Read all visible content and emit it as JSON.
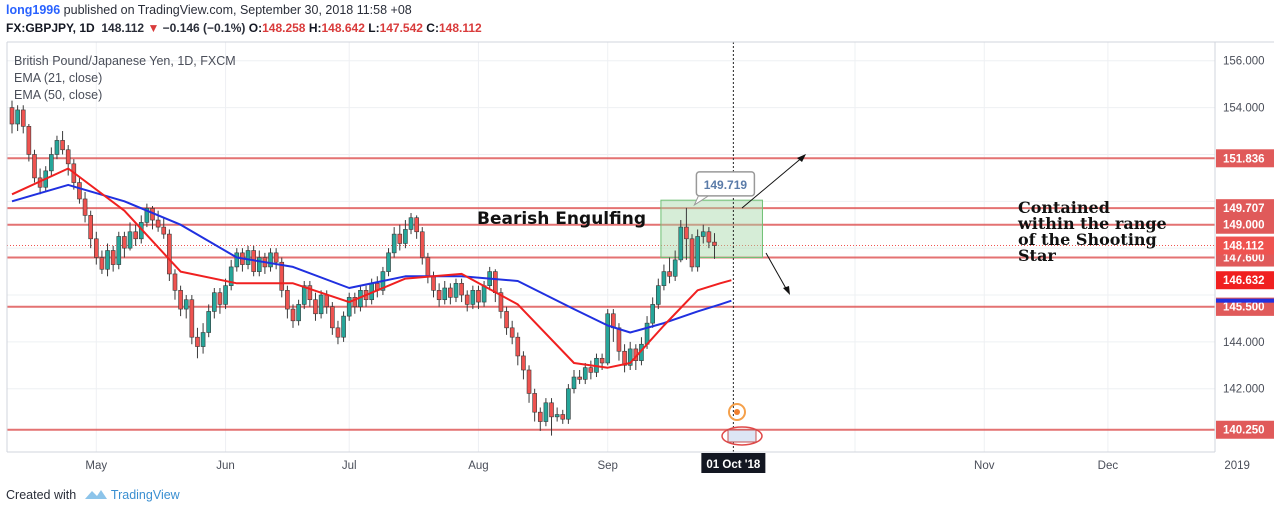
{
  "header": {
    "user": "long1996",
    "published": "published on TradingView.com, September 30, 2018 11:58 +08",
    "symbol": "FX:GBPJPY, 1D",
    "last": "148.112",
    "change": "−0.146 (−0.1%)",
    "o_label": "O:",
    "o_value": "148.258",
    "h_label": "H:",
    "h_value": "148.642",
    "l_label": "L:",
    "l_value": "147.542",
    "c_label": "C:",
    "c_value": "148.112"
  },
  "legend": {
    "instrument": "British Pound/Japanese Yen, 1D, FXCM",
    "ema21": "EMA (21, close)",
    "ema50": "EMA (50, close)"
  },
  "footer": {
    "created_with": "Created with",
    "brand": "TradingView"
  },
  "colors": {
    "up": "#26a69a",
    "down": "#ef5350",
    "ema21": "#f02020",
    "ema50": "#2030e0",
    "level": "#e05a5a"
  },
  "chart_data": {
    "type": "candlestick",
    "symbol": "GBPJPY",
    "timeframe": "1D",
    "ylim": [
      139.3,
      156.8
    ],
    "y_ticks": [
      142.0,
      144.0,
      146.0,
      148.0,
      150.0,
      152.0,
      154.0,
      156.0
    ],
    "y_tick_labels": [
      "142.000",
      "144.000",
      "",
      "",
      "",
      "",
      "154.000",
      "156.000"
    ],
    "x_labels": [
      {
        "label": "May",
        "bar": 15
      },
      {
        "label": "Jun",
        "bar": 38
      },
      {
        "label": "Jul",
        "bar": 60
      },
      {
        "label": "Aug",
        "bar": 83
      },
      {
        "label": "Sep",
        "bar": 106
      },
      {
        "label": "Oct",
        "bar": 150
      },
      {
        "label": "Nov",
        "bar": 173
      },
      {
        "label": "Dec",
        "bar": 195
      },
      {
        "label": "2019",
        "bar": 218
      }
    ],
    "current_date_label": "01 Oct '18",
    "current_bar": 128,
    "levels": [
      151.836,
      149.707,
      149.0,
      147.6,
      145.5,
      140.25
    ],
    "level_labels": [
      "151.836",
      "149.707",
      "149.000",
      "147.600",
      "145.500",
      "140.250"
    ],
    "price_tags": [
      {
        "label": "148.112",
        "value": 148.112
      },
      {
        "label": "146.632",
        "value": 146.632
      },
      {
        "label": "145.500",
        "value": 145.5
      }
    ],
    "current_price": 148.112,
    "ema21_last": 146.632,
    "ema50_last": 145.76,
    "peak_callout": {
      "label": "149.719",
      "bar": 120,
      "value": 149.719
    },
    "annotations": [
      {
        "text": "Bearish Engulfing"
      },
      {
        "text": [
          "Contained",
          "within the range",
          "of the Shooting",
          "Star"
        ]
      }
    ],
    "box": {
      "bar_start": 116,
      "bar_end": 133,
      "low": 147.6,
      "high": 149.707
    },
    "candles": [
      [
        154.0,
        153.3,
        154.3,
        152.9
      ],
      [
        153.3,
        153.9,
        154.1,
        153.0
      ],
      [
        153.9,
        153.2,
        154.1,
        152.9
      ],
      [
        153.2,
        152.0,
        153.3,
        151.7
      ],
      [
        152.0,
        151.0,
        152.2,
        150.8
      ],
      [
        151.0,
        150.6,
        151.4,
        150.3
      ],
      [
        150.6,
        151.3,
        151.5,
        150.4
      ],
      [
        151.3,
        152.0,
        152.3,
        151.1
      ],
      [
        152.0,
        152.6,
        152.8,
        151.8
      ],
      [
        152.6,
        152.2,
        153.0,
        152.0
      ],
      [
        152.2,
        151.6,
        152.4,
        151.1
      ],
      [
        151.6,
        150.8,
        151.8,
        150.5
      ],
      [
        150.8,
        150.1,
        151.0,
        149.9
      ],
      [
        150.1,
        149.4,
        150.4,
        149.1
      ],
      [
        149.4,
        148.4,
        149.6,
        148.0
      ],
      [
        148.4,
        147.6,
        148.7,
        147.3
      ],
      [
        147.6,
        147.1,
        147.9,
        146.9
      ],
      [
        147.1,
        147.9,
        148.2,
        146.8
      ],
      [
        147.9,
        147.3,
        148.1,
        147.0
      ],
      [
        147.3,
        148.5,
        148.7,
        147.1
      ],
      [
        148.5,
        148.0,
        148.7,
        147.6
      ],
      [
        148.0,
        148.7,
        149.1,
        147.9
      ],
      [
        148.7,
        148.4,
        149.0,
        148.1
      ],
      [
        148.4,
        149.1,
        149.4,
        148.2
      ],
      [
        149.1,
        149.7,
        149.9,
        148.9
      ],
      [
        149.7,
        149.2,
        149.8,
        148.8
      ],
      [
        149.2,
        148.9,
        149.6,
        148.7
      ],
      [
        148.9,
        148.6,
        149.3,
        148.4
      ],
      [
        148.6,
        146.9,
        148.8,
        146.6
      ],
      [
        146.9,
        146.2,
        147.1,
        145.8
      ],
      [
        146.2,
        145.4,
        146.4,
        145.1
      ],
      [
        145.4,
        145.8,
        146.0,
        145.0
      ],
      [
        145.8,
        144.2,
        146.0,
        143.9
      ],
      [
        144.2,
        143.8,
        144.6,
        143.3
      ],
      [
        143.8,
        144.4,
        144.8,
        143.5
      ],
      [
        144.4,
        145.3,
        145.6,
        144.2
      ],
      [
        145.3,
        146.1,
        146.3,
        145.0
      ],
      [
        146.1,
        145.6,
        146.3,
        145.2
      ],
      [
        145.6,
        146.4,
        146.7,
        145.4
      ],
      [
        146.4,
        147.2,
        147.5,
        146.2
      ],
      [
        147.2,
        147.8,
        148.0,
        147.0
      ],
      [
        147.8,
        147.3,
        148.0,
        147.0
      ],
      [
        147.3,
        147.9,
        148.1,
        147.1
      ],
      [
        147.9,
        147.0,
        148.1,
        146.8
      ],
      [
        147.0,
        147.6,
        147.9,
        146.8
      ],
      [
        147.6,
        147.2,
        147.8,
        146.9
      ],
      [
        147.2,
        147.8,
        148.0,
        147.0
      ],
      [
        147.8,
        147.4,
        148.0,
        147.1
      ],
      [
        147.4,
        146.2,
        147.6,
        145.9
      ],
      [
        146.2,
        145.4,
        146.4,
        145.0
      ],
      [
        145.4,
        144.9,
        145.6,
        144.6
      ],
      [
        144.9,
        145.6,
        145.8,
        144.7
      ],
      [
        145.6,
        146.4,
        146.6,
        145.4
      ],
      [
        146.4,
        145.8,
        146.6,
        145.5
      ],
      [
        145.8,
        145.2,
        146.1,
        144.9
      ],
      [
        145.2,
        146.0,
        146.2,
        145.0
      ],
      [
        146.0,
        145.5,
        146.2,
        145.2
      ],
      [
        145.5,
        144.6,
        145.7,
        144.3
      ],
      [
        144.6,
        144.2,
        144.9,
        143.9
      ],
      [
        144.2,
        145.1,
        145.3,
        144.0
      ],
      [
        145.1,
        145.9,
        146.1,
        144.9
      ],
      [
        145.9,
        145.5,
        146.1,
        145.2
      ],
      [
        145.5,
        146.2,
        146.4,
        145.3
      ],
      [
        146.2,
        145.8,
        146.4,
        145.5
      ],
      [
        145.8,
        146.5,
        146.7,
        145.6
      ],
      [
        146.5,
        146.2,
        146.8,
        145.9
      ],
      [
        146.2,
        147.0,
        147.2,
        146.0
      ],
      [
        147.0,
        147.8,
        148.0,
        146.8
      ],
      [
        147.8,
        148.6,
        148.9,
        147.6
      ],
      [
        148.6,
        148.2,
        149.0,
        147.9
      ],
      [
        148.2,
        148.8,
        149.2,
        148.0
      ],
      [
        148.8,
        149.3,
        149.5,
        148.6
      ],
      [
        149.3,
        148.7,
        149.4,
        148.4
      ],
      [
        148.7,
        147.6,
        148.9,
        147.3
      ],
      [
        147.6,
        146.8,
        147.8,
        146.5
      ],
      [
        146.8,
        146.2,
        147.0,
        145.9
      ],
      [
        146.2,
        145.8,
        146.5,
        145.5
      ],
      [
        145.8,
        146.3,
        146.6,
        145.6
      ],
      [
        146.3,
        145.9,
        146.5,
        145.6
      ],
      [
        145.9,
        146.5,
        146.7,
        145.7
      ],
      [
        146.5,
        146.0,
        146.7,
        145.7
      ],
      [
        146.0,
        145.6,
        146.2,
        145.3
      ],
      [
        145.6,
        146.2,
        146.4,
        145.4
      ],
      [
        146.2,
        145.7,
        146.4,
        145.4
      ],
      [
        145.7,
        146.4,
        146.6,
        145.5
      ],
      [
        146.4,
        147.0,
        147.2,
        146.2
      ],
      [
        147.0,
        146.1,
        147.1,
        145.7
      ],
      [
        146.1,
        145.3,
        146.3,
        145.0
      ],
      [
        145.3,
        144.6,
        145.5,
        144.3
      ],
      [
        144.6,
        144.2,
        144.9,
        143.9
      ],
      [
        144.2,
        143.4,
        144.4,
        143.0
      ],
      [
        143.4,
        142.8,
        143.6,
        142.4
      ],
      [
        142.8,
        141.8,
        143.0,
        141.4
      ],
      [
        141.8,
        141.0,
        142.0,
        140.6
      ],
      [
        141.0,
        140.6,
        141.2,
        140.2
      ],
      [
        140.6,
        141.4,
        141.6,
        140.4
      ],
      [
        141.4,
        140.8,
        141.6,
        140.0
      ],
      [
        140.8,
        140.9,
        141.2,
        140.6
      ],
      [
        140.9,
        140.7,
        141.1,
        140.5
      ],
      [
        140.7,
        142.0,
        142.2,
        140.5
      ],
      [
        142.0,
        142.5,
        142.8,
        141.8
      ],
      [
        142.5,
        142.4,
        142.8,
        142.2
      ],
      [
        142.4,
        142.9,
        143.1,
        142.2
      ],
      [
        142.9,
        142.7,
        143.2,
        142.4
      ],
      [
        142.7,
        143.3,
        143.5,
        142.5
      ],
      [
        143.3,
        143.1,
        143.5,
        142.8
      ],
      [
        143.1,
        145.2,
        145.4,
        143.0
      ],
      [
        145.2,
        144.6,
        145.4,
        144.0
      ],
      [
        144.6,
        143.6,
        144.8,
        143.2
      ],
      [
        143.6,
        143.0,
        143.9,
        142.7
      ],
      [
        143.0,
        143.7,
        144.0,
        142.8
      ],
      [
        143.7,
        143.2,
        143.9,
        142.8
      ],
      [
        143.2,
        143.9,
        144.2,
        143.0
      ],
      [
        143.9,
        144.8,
        145.1,
        143.7
      ],
      [
        144.8,
        145.6,
        145.9,
        144.6
      ],
      [
        145.6,
        146.4,
        146.7,
        145.4
      ],
      [
        146.4,
        147.0,
        147.3,
        146.2
      ],
      [
        147.0,
        146.8,
        147.6,
        146.5
      ],
      [
        146.8,
        147.5,
        147.9,
        146.6
      ],
      [
        147.5,
        148.9,
        149.2,
        147.4
      ],
      [
        148.9,
        148.4,
        149.72,
        147.5
      ],
      [
        148.4,
        147.2,
        148.6,
        147.0
      ],
      [
        147.2,
        148.5,
        148.8,
        147.0
      ],
      [
        148.5,
        148.7,
        149.0,
        148.2
      ],
      [
        148.7,
        148.26,
        148.9,
        148.0
      ],
      [
        148.258,
        148.112,
        148.642,
        147.542
      ]
    ],
    "ema21": [
      [
        0,
        150.3
      ],
      [
        10,
        151.4
      ],
      [
        20,
        149.6
      ],
      [
        30,
        147.0
      ],
      [
        40,
        146.5
      ],
      [
        50,
        146.5
      ],
      [
        60,
        145.7
      ],
      [
        70,
        146.7
      ],
      [
        80,
        146.9
      ],
      [
        90,
        145.6
      ],
      [
        100,
        143.1
      ],
      [
        106,
        142.9
      ],
      [
        110,
        143.1
      ],
      [
        116,
        144.7
      ],
      [
        122,
        146.2
      ],
      [
        126,
        146.5
      ],
      [
        128,
        146.632
      ]
    ],
    "ema50": [
      [
        0,
        150.0
      ],
      [
        10,
        150.7
      ],
      [
        20,
        150.0
      ],
      [
        30,
        149.0
      ],
      [
        40,
        147.6
      ],
      [
        50,
        147.2
      ],
      [
        60,
        146.3
      ],
      [
        70,
        146.8
      ],
      [
        80,
        146.8
      ],
      [
        90,
        146.6
      ],
      [
        100,
        145.4
      ],
      [
        106,
        144.7
      ],
      [
        110,
        144.4
      ],
      [
        116,
        144.8
      ],
      [
        122,
        145.3
      ],
      [
        126,
        145.6
      ],
      [
        128,
        145.76
      ]
    ]
  }
}
